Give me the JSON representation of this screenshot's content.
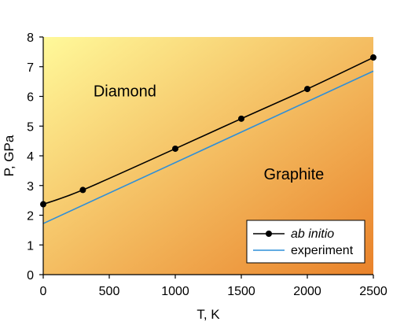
{
  "chart_data": {
    "type": "line",
    "title": "",
    "xlabel": "T, K",
    "ylabel": "P, GPa",
    "xlim": [
      0,
      2500
    ],
    "ylim": [
      0,
      8
    ],
    "xticks": [
      "0",
      "500",
      "1000",
      "1500",
      "2000",
      "2500"
    ],
    "yticks": [
      "0",
      "1",
      "2",
      "3",
      "4",
      "5",
      "6",
      "7",
      "8"
    ],
    "grid": false,
    "legend_position": "bottom-right",
    "annotations": [
      {
        "text": "Diamond",
        "x": 380,
        "y": 6.0
      },
      {
        "text": "Graphite",
        "x": 1670,
        "y": 3.2
      }
    ],
    "series": [
      {
        "name": "ab initio",
        "style": "line-with-markers",
        "color": "#000000",
        "x": [
          0,
          300,
          1000,
          1500,
          2000,
          2500
        ],
        "y": [
          2.37,
          2.85,
          4.24,
          5.25,
          6.25,
          7.31
        ]
      },
      {
        "name": "experiment",
        "style": "line",
        "color": "#2f8fd8",
        "x": [
          0,
          2500
        ],
        "y": [
          1.72,
          6.85
        ]
      }
    ],
    "background_gradient": [
      "#fff99a",
      "#e9822a"
    ]
  }
}
